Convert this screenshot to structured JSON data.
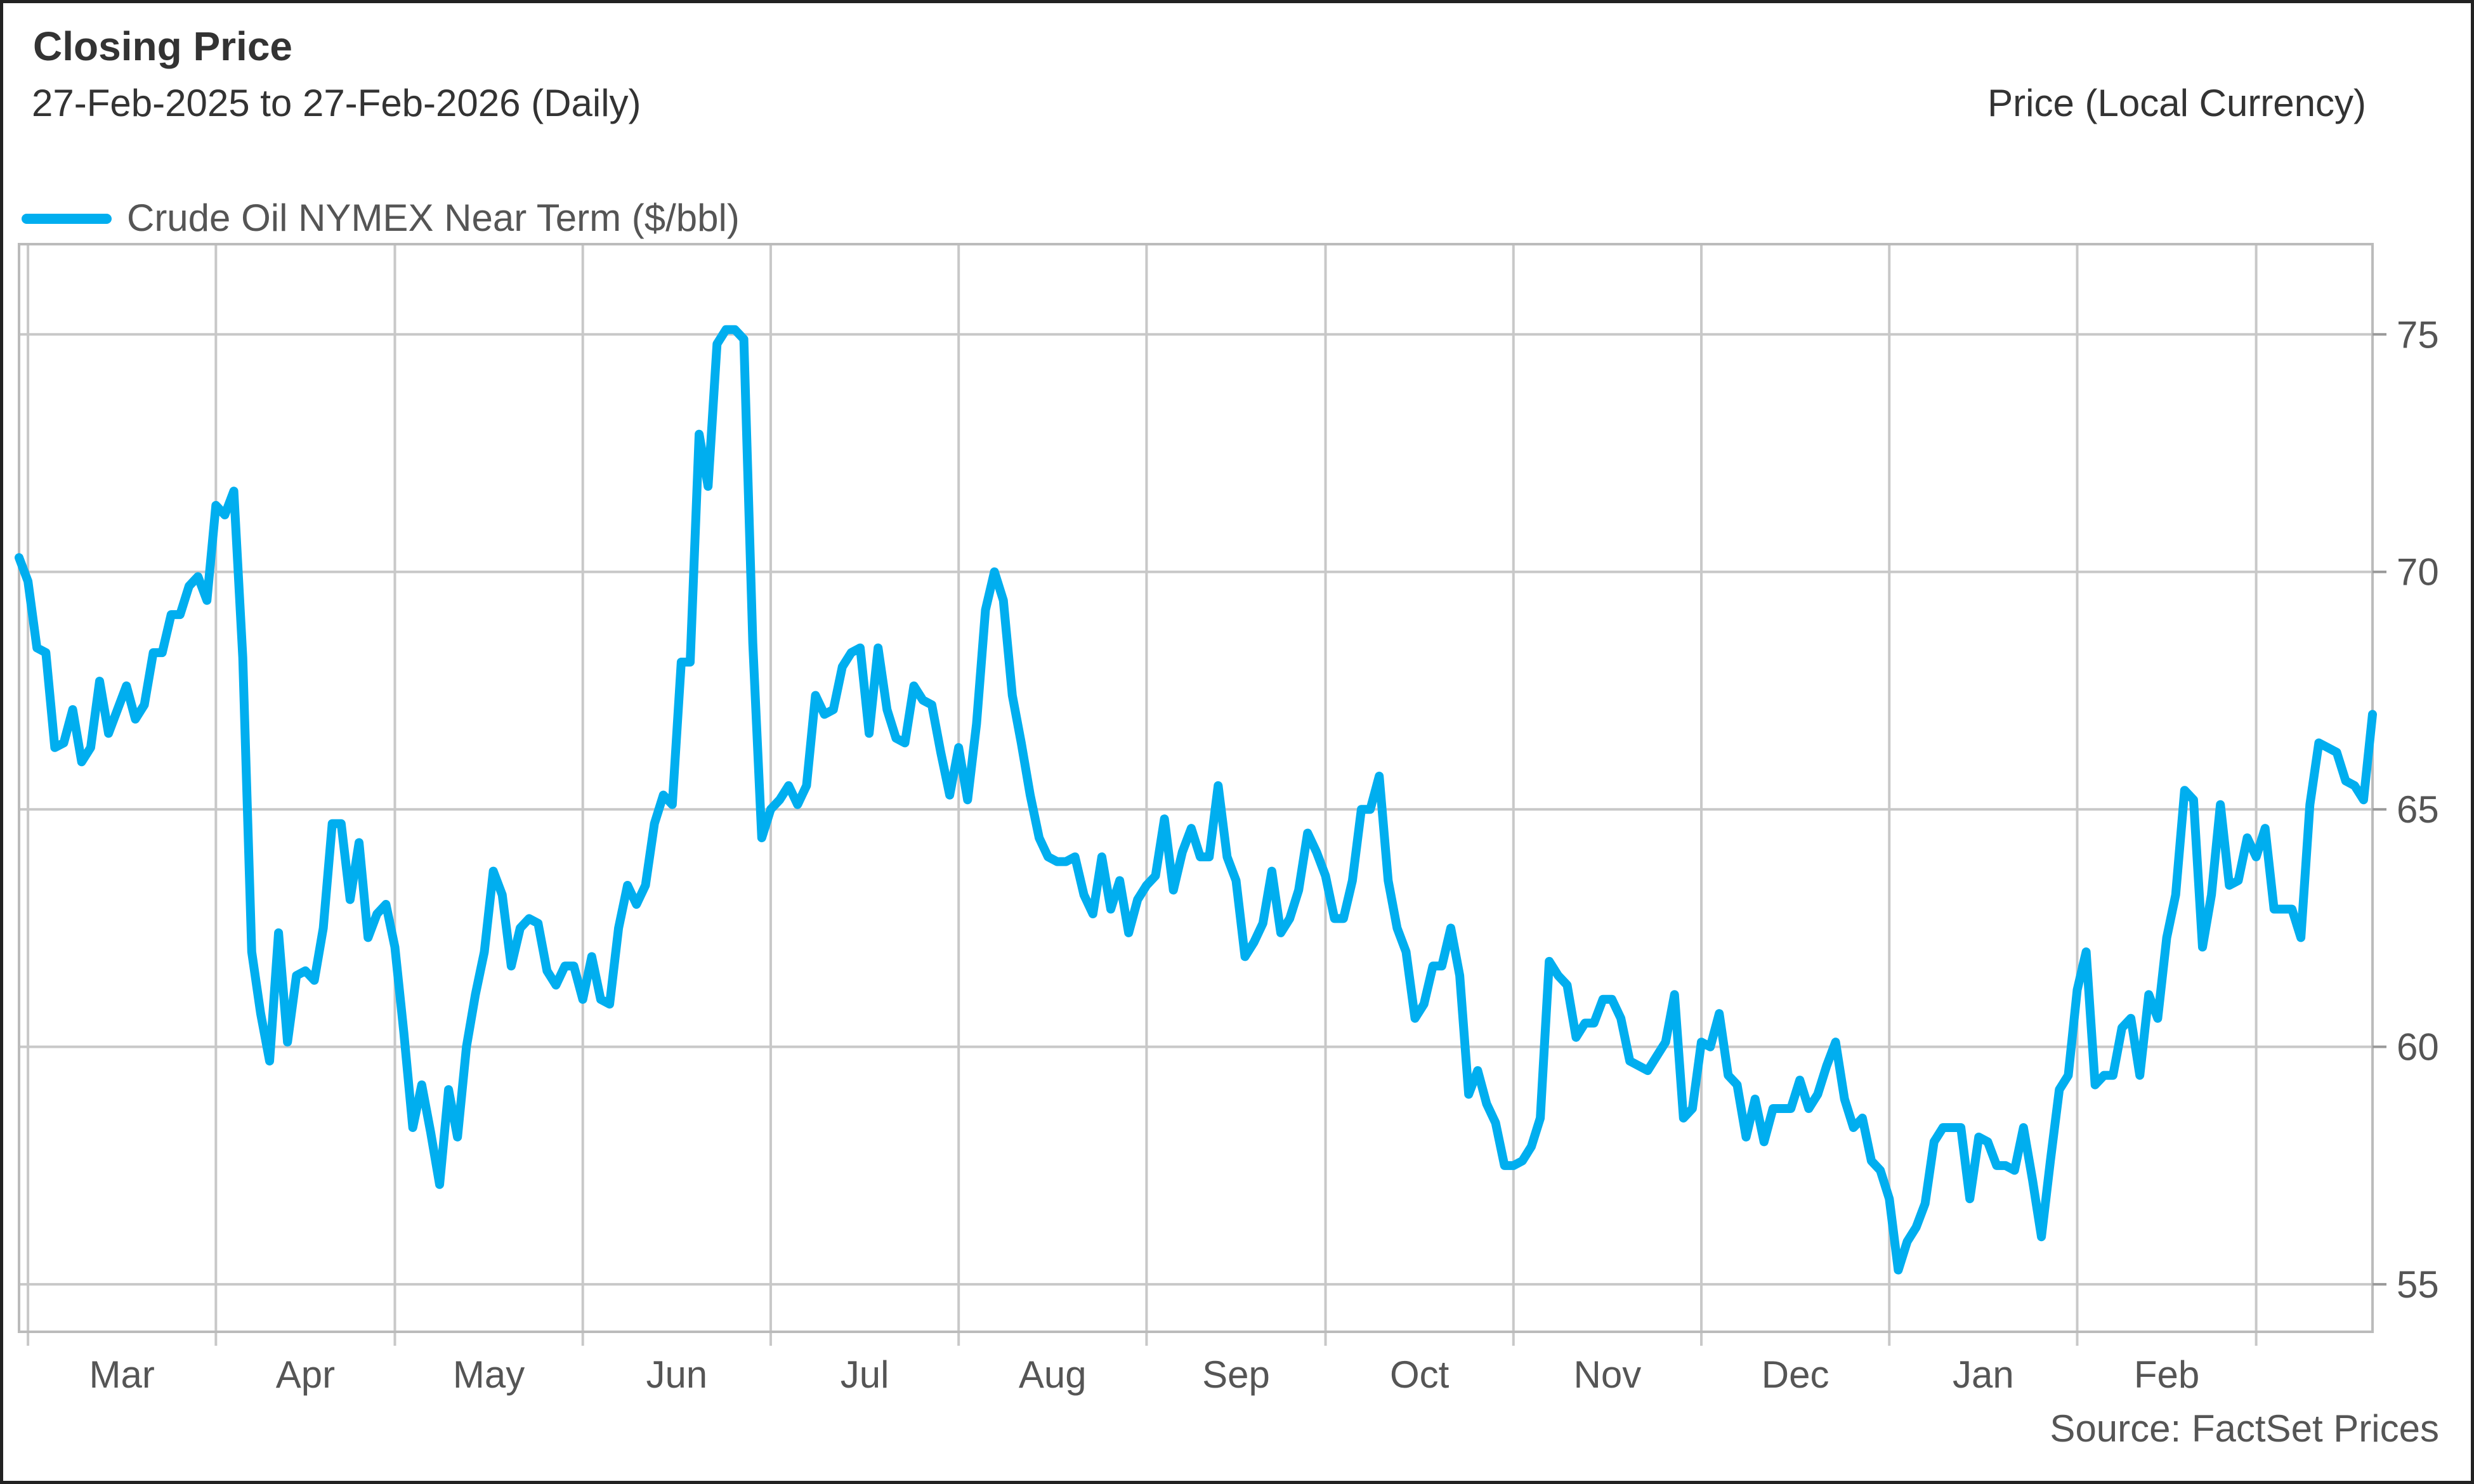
{
  "header": {
    "title": "Closing Price",
    "subtitle": "27-Feb-2025 to 27-Feb-2026 (Daily)",
    "units": "Price (Local Currency)"
  },
  "footer": {
    "source": "Source: FactSet Prices"
  },
  "chart_data": {
    "type": "line",
    "series": [
      {
        "name": "Crude Oil NYMEX Near Term ($/bbl)",
        "color": "#00aeef",
        "values": [
          70.3,
          69.8,
          68.4,
          68.3,
          66.3,
          66.4,
          67.1,
          66.0,
          66.3,
          67.7,
          66.6,
          67.1,
          67.6,
          66.9,
          67.2,
          68.3,
          68.3,
          69.1,
          69.1,
          69.7,
          69.9,
          69.4,
          71.4,
          71.2,
          71.7,
          68.2,
          62.0,
          60.7,
          59.7,
          62.4,
          60.1,
          61.5,
          61.6,
          61.4,
          62.5,
          64.7,
          64.7,
          63.1,
          64.3,
          62.3,
          62.8,
          63.0,
          62.1,
          60.3,
          58.3,
          59.2,
          58.2,
          57.1,
          59.1,
          58.1,
          60.0,
          61.1,
          62.0,
          63.7,
          63.2,
          61.7,
          62.5,
          62.7,
          62.6,
          61.6,
          61.3,
          61.7,
          61.7,
          61.0,
          61.9,
          61.0,
          60.9,
          62.5,
          63.4,
          63.0,
          63.4,
          64.7,
          65.3,
          65.1,
          68.1,
          68.1,
          72.9,
          71.8,
          74.8,
          75.1,
          75.1,
          74.9,
          68.5,
          64.4,
          65.0,
          65.2,
          65.5,
          65.1,
          65.5,
          67.4,
          67.0,
          67.1,
          68.0,
          68.3,
          68.4,
          66.6,
          68.4,
          67.1,
          66.5,
          66.4,
          67.6,
          67.3,
          67.2,
          66.2,
          65.3,
          66.3,
          65.2,
          66.8,
          69.2,
          70.0,
          69.4,
          67.4,
          66.4,
          65.3,
          64.4,
          64.0,
          63.9,
          63.9,
          64.0,
          63.2,
          62.8,
          64.0,
          62.9,
          63.5,
          62.4,
          63.1,
          63.4,
          63.6,
          64.8,
          63.3,
          64.1,
          64.6,
          64.0,
          64.0,
          65.5,
          64.0,
          63.5,
          61.9,
          62.2,
          62.6,
          63.7,
          62.4,
          62.7,
          63.3,
          64.5,
          64.1,
          63.6,
          62.7,
          62.7,
          63.5,
          65.0,
          65.0,
          65.7,
          63.5,
          62.5,
          62.0,
          60.6,
          60.9,
          61.7,
          61.7,
          62.5,
          61.5,
          59.0,
          59.5,
          58.8,
          58.4,
          57.5,
          57.5,
          57.6,
          57.9,
          58.5,
          61.8,
          61.5,
          61.3,
          60.2,
          60.5,
          60.5,
          61.0,
          61.0,
          60.6,
          59.7,
          59.6,
          59.5,
          59.8,
          60.1,
          61.1,
          58.5,
          58.7,
          60.1,
          60.0,
          60.7,
          59.4,
          59.2,
          58.1,
          58.9,
          58.0,
          58.7,
          58.7,
          58.7,
          59.3,
          58.7,
          59.0,
          59.6,
          60.1,
          58.9,
          58.3,
          58.5,
          57.6,
          57.4,
          56.8,
          55.3,
          55.9,
          56.2,
          56.7,
          58.0,
          58.3,
          58.3,
          58.3,
          56.8,
          58.1,
          58.0,
          57.5,
          57.5,
          57.4,
          58.3,
          57.2,
          56.0,
          57.6,
          59.1,
          59.4,
          61.2,
          62.0,
          59.2,
          59.4,
          59.4,
          60.4,
          60.6,
          59.4,
          61.1,
          60.6,
          62.3,
          63.2,
          65.4,
          65.2,
          62.1,
          63.2,
          65.1,
          63.4,
          63.5,
          64.4,
          64.0,
          64.6,
          62.9,
          62.9,
          62.9,
          62.3,
          65.1,
          66.4,
          66.3,
          66.2,
          65.6,
          65.5,
          65.2,
          67.0
        ]
      }
    ],
    "x_tick_labels": [
      "Mar",
      "Apr",
      "May",
      "Jun",
      "Jul",
      "Aug",
      "Sep",
      "Oct",
      "Nov",
      "Dec",
      "Jan",
      "Feb"
    ],
    "y_tick_labels": [
      "55",
      "60",
      "65",
      "70",
      "75"
    ],
    "y_ticks": [
      55,
      60,
      65,
      70,
      75
    ],
    "ylim": [
      54.0,
      76.9
    ],
    "x_range": [
      "27-Feb-2025",
      "27-Feb-2026"
    ],
    "grid": true,
    "legend_position": "top-left",
    "y_axis_side": "right",
    "gridline_color": "#c8c8c8"
  }
}
